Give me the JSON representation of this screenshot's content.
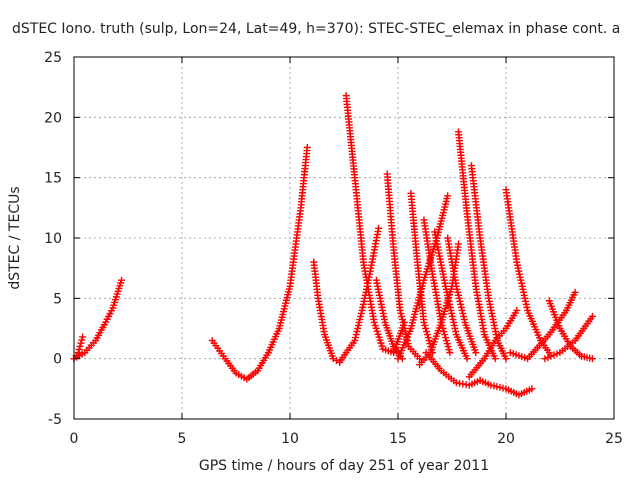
{
  "chart_data": {
    "type": "scatter",
    "title": "dSTEC Iono. truth (sulp, Lon=24, Lat=49, h=370): STEC-STEC_elemax in phase cont. a",
    "xlabel": "GPS time / hours of day 251 of year 2011",
    "ylabel": "dSTEC  / TECUs",
    "xlim": [
      0,
      25
    ],
    "ylim": [
      -5,
      25
    ],
    "x_ticks": [
      "0",
      "5",
      "10",
      "15",
      "20",
      "25"
    ],
    "y_ticks": [
      "-5",
      "0",
      "5",
      "10",
      "15",
      "20",
      "25"
    ],
    "grid": true,
    "marker": "+",
    "color": "#ff0000",
    "series": [
      {
        "points": [
          [
            0.0,
            0.0
          ],
          [
            0.2,
            0.5
          ],
          [
            0.4,
            1.8
          ]
        ]
      },
      {
        "points": [
          [
            0.0,
            0.0
          ],
          [
            0.5,
            0.5
          ],
          [
            1.0,
            1.5
          ],
          [
            1.4,
            2.8
          ],
          [
            1.8,
            4.2
          ],
          [
            2.2,
            6.5
          ]
        ]
      },
      {
        "points": [
          [
            6.4,
            1.5
          ],
          [
            7.0,
            0.0
          ],
          [
            7.5,
            -1.2
          ],
          [
            8.0,
            -1.7
          ],
          [
            8.5,
            -1.0
          ],
          [
            9.0,
            0.5
          ],
          [
            9.5,
            2.5
          ],
          [
            10.0,
            6.0
          ],
          [
            10.5,
            12.5
          ],
          [
            10.8,
            17.5
          ]
        ]
      },
      {
        "points": [
          [
            11.1,
            8.0
          ],
          [
            11.3,
            5.0
          ],
          [
            11.6,
            2.0
          ],
          [
            12.0,
            0.0
          ],
          [
            12.3,
            -0.3
          ]
        ]
      },
      {
        "points": [
          [
            12.3,
            -0.3
          ],
          [
            12.6,
            0.5
          ],
          [
            13.0,
            1.5
          ],
          [
            13.4,
            4.5
          ],
          [
            13.8,
            8.0
          ],
          [
            14.1,
            10.8
          ]
        ]
      },
      {
        "points": [
          [
            12.6,
            21.8
          ],
          [
            13.0,
            15.0
          ],
          [
            13.4,
            8.0
          ],
          [
            13.9,
            3.0
          ],
          [
            14.3,
            0.8
          ],
          [
            14.8,
            0.5
          ],
          [
            15.3,
            3.0
          ]
        ]
      },
      {
        "points": [
          [
            14.5,
            15.3
          ],
          [
            14.8,
            9.0
          ],
          [
            15.1,
            4.0
          ],
          [
            15.5,
            1.0
          ],
          [
            16.0,
            0.0
          ]
        ]
      },
      {
        "points": [
          [
            14.0,
            6.5
          ],
          [
            14.4,
            3.0
          ],
          [
            14.8,
            1.0
          ],
          [
            15.2,
            0.0
          ]
        ]
      },
      {
        "points": [
          [
            15.6,
            13.7
          ],
          [
            15.9,
            8.0
          ],
          [
            16.2,
            3.0
          ],
          [
            16.6,
            0.5
          ]
        ]
      },
      {
        "points": [
          [
            16.2,
            11.5
          ],
          [
            16.6,
            7.0
          ],
          [
            17.0,
            3.0
          ],
          [
            17.4,
            0.5
          ]
        ]
      },
      {
        "points": [
          [
            15.0,
            0.0
          ],
          [
            15.6,
            2.5
          ],
          [
            16.2,
            6.5
          ],
          [
            16.8,
            10.0
          ],
          [
            17.3,
            13.5
          ]
        ]
      },
      {
        "points": [
          [
            16.0,
            -0.5
          ],
          [
            16.5,
            0.5
          ],
          [
            17.0,
            3.0
          ],
          [
            17.5,
            6.0
          ],
          [
            17.8,
            9.5
          ]
        ]
      },
      {
        "points": [
          [
            16.7,
            10.5
          ],
          [
            17.2,
            6.0
          ],
          [
            17.7,
            2.0
          ],
          [
            18.2,
            0.0
          ]
        ]
      },
      {
        "points": [
          [
            17.3,
            10.0
          ],
          [
            17.7,
            6.0
          ],
          [
            18.1,
            3.0
          ],
          [
            18.6,
            0.5
          ]
        ]
      },
      {
        "points": [
          [
            17.8,
            18.8
          ],
          [
            18.2,
            12.0
          ],
          [
            18.6,
            6.0
          ],
          [
            19.0,
            2.0
          ],
          [
            19.5,
            0.0
          ]
        ]
      },
      {
        "points": [
          [
            18.4,
            16.0
          ],
          [
            18.8,
            10.0
          ],
          [
            19.2,
            5.0
          ],
          [
            19.6,
            1.5
          ],
          [
            20.0,
            0.0
          ]
        ]
      },
      {
        "points": [
          [
            16.3,
            0.5
          ],
          [
            17.0,
            -1.0
          ],
          [
            17.7,
            -2.0
          ],
          [
            18.3,
            -2.2
          ],
          [
            18.8,
            -1.8
          ]
        ]
      },
      {
        "points": [
          [
            18.8,
            -1.8
          ],
          [
            19.3,
            -2.2
          ],
          [
            20.0,
            -2.5
          ],
          [
            20.6,
            -3.0
          ],
          [
            21.2,
            -2.5
          ]
        ]
      },
      {
        "points": [
          [
            18.3,
            -1.5
          ],
          [
            19.0,
            0.0
          ],
          [
            19.5,
            1.5
          ],
          [
            20.0,
            2.5
          ],
          [
            20.5,
            4.0
          ]
        ]
      },
      {
        "points": [
          [
            20.0,
            14.0
          ],
          [
            20.5,
            8.0
          ],
          [
            21.0,
            4.0
          ],
          [
            21.6,
            1.5
          ],
          [
            22.0,
            0.5
          ]
        ]
      },
      {
        "points": [
          [
            20.2,
            0.5
          ],
          [
            21.0,
            0.0
          ],
          [
            22.0,
            2.0
          ],
          [
            22.8,
            4.0
          ],
          [
            23.2,
            5.5
          ]
        ]
      },
      {
        "points": [
          [
            22.0,
            4.8
          ],
          [
            22.5,
            2.5
          ],
          [
            23.0,
            1.0
          ],
          [
            23.5,
            0.2
          ],
          [
            24.0,
            0.0
          ]
        ]
      },
      {
        "points": [
          [
            21.8,
            0.0
          ],
          [
            22.5,
            0.5
          ],
          [
            23.2,
            1.5
          ],
          [
            23.6,
            2.5
          ],
          [
            24.0,
            3.5
          ]
        ]
      }
    ]
  }
}
